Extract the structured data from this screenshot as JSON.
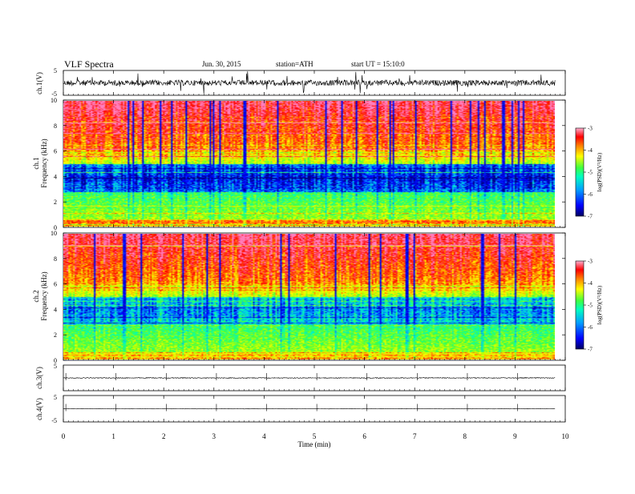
{
  "header": {
    "title": "VLF Spectra",
    "date": "Jun. 30, 2015",
    "station": "station=ATH",
    "start": "start  UT =   15:10:0"
  },
  "chart_data": [
    {
      "type": "line",
      "panel": "ch1-waveform",
      "ylabel": "ch.1(V)",
      "ylim": [
        -5,
        5
      ],
      "yticks": [
        "5",
        "-5"
      ],
      "description_level": 0.0
    },
    {
      "type": "heatmap",
      "panel": "ch1-spectrogram",
      "ylabel_channel": "ch.1",
      "ylabel": "Frequency  (kHz)",
      "ylim": [
        0,
        10
      ],
      "yticks": [
        "0",
        "2",
        "4",
        "6",
        "8",
        "10"
      ],
      "colorbar_label": "log(PSD)(V²/Hz)",
      "colorbar_range": [
        -7,
        -3
      ],
      "colorbar_ticks": [
        "-3",
        "-4",
        "-5",
        "-6",
        "-7"
      ]
    },
    {
      "type": "heatmap",
      "panel": "ch2-spectrogram",
      "ylabel_channel": "ch.2",
      "ylabel": "Frequency  (kHz)",
      "ylim": [
        0,
        10
      ],
      "yticks": [
        "0",
        "2",
        "4",
        "6",
        "8",
        "10"
      ],
      "colorbar_label": "log(PSD)(V²/Hz)",
      "colorbar_range": [
        -7,
        -3
      ],
      "colorbar_ticks": [
        "-3",
        "-4",
        "-5",
        "-6",
        "-7"
      ]
    },
    {
      "type": "line",
      "panel": "ch3-waveform",
      "ylabel": "ch.3(V)",
      "ylim": [
        -5,
        5
      ],
      "yticks": [
        "5",
        "-5"
      ]
    },
    {
      "type": "line",
      "panel": "ch4-waveform",
      "ylabel": "ch.4(V)",
      "ylim": [
        -5,
        5
      ],
      "yticks": [
        "5",
        "-5"
      ]
    }
  ],
  "x_axis": {
    "xlabel": "Time  (min)",
    "xlim": [
      0,
      10
    ],
    "ticks": [
      "0",
      "1",
      "2",
      "3",
      "4",
      "5",
      "6",
      "7",
      "8",
      "9",
      "10"
    ],
    "data_end": 9.8
  },
  "colors": {
    "colormap": [
      "#000080",
      "#0000ff",
      "#00a0ff",
      "#00ffc0",
      "#40ff40",
      "#c0ff00",
      "#ffff00",
      "#ff8000",
      "#ff0000",
      "#ff80c0"
    ]
  }
}
